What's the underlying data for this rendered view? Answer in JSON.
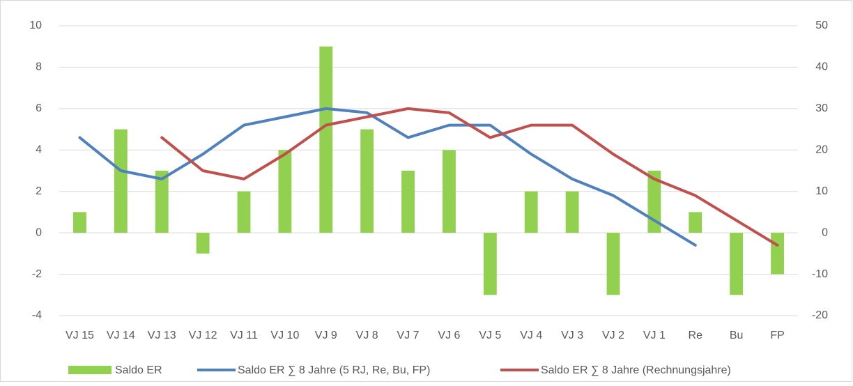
{
  "chart_data": {
    "type": "bar-line",
    "categories": [
      "VJ 15",
      "VJ 14",
      "VJ 13",
      "VJ 12",
      "VJ 11",
      "VJ 10",
      "VJ 9",
      "VJ 8",
      "VJ 7",
      "VJ 6",
      "VJ 5",
      "VJ 4",
      "VJ 3",
      "VJ 2",
      "VJ 1",
      "Re",
      "Bu",
      "FP"
    ],
    "series": [
      {
        "name": "Saldo ER",
        "type": "bar",
        "color": "#92d050",
        "axis": "y",
        "values": [
          1,
          5,
          3,
          -1,
          2,
          4,
          9,
          5,
          3,
          4,
          -3,
          2,
          2,
          -3,
          3,
          1,
          -3,
          -2
        ]
      },
      {
        "name": "Saldo ER ∑ 8 Jahre (5 RJ, Re, Bu, FP)",
        "type": "line",
        "color": "#4f81bd",
        "axis": "y2",
        "values": [
          23,
          15,
          13,
          19,
          26,
          28,
          30,
          29,
          23,
          26,
          26,
          19,
          13,
          9,
          3,
          -3,
          null,
          null
        ]
      },
      {
        "name": "Saldo ER ∑ 8 Jahre (Rechnungsjahre)",
        "type": "line",
        "color": "#c0504d",
        "axis": "y2",
        "values": [
          null,
          null,
          23,
          15,
          13,
          19,
          26,
          28,
          30,
          29,
          23,
          26,
          26,
          19,
          13,
          9,
          3,
          -3
        ]
      }
    ],
    "ylim": [
      -4,
      10
    ],
    "yticks": [
      -4,
      -2,
      0,
      2,
      4,
      6,
      8,
      10
    ],
    "y2lim": [
      -20,
      50
    ],
    "y2ticks": [
      -20,
      -10,
      0,
      10,
      20,
      30,
      40,
      50
    ],
    "grid": true,
    "legend": "bottom"
  }
}
